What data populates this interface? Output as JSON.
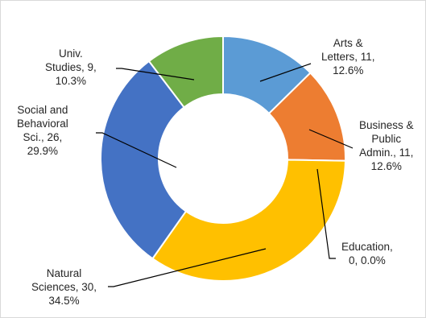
{
  "chart_data": {
    "type": "pie",
    "donut": true,
    "legend": "none",
    "slices": [
      {
        "label": "Arts & Letters",
        "value": 11,
        "percent": "12.6%",
        "color": "#5b9bd5",
        "text_lines": [
          "Arts &",
          "Letters, 11,",
          "12.6%"
        ]
      },
      {
        "label": "Business & Public Admin.",
        "value": 11,
        "percent": "12.6%",
        "color": "#ed7d31",
        "text_lines": [
          "Business &",
          "Public",
          "Admin., 11,",
          "12.6%"
        ]
      },
      {
        "label": "Education",
        "value": 0,
        "percent": "0.0%",
        "color": "#a5a5a5",
        "text_lines": [
          "Education,",
          "0, 0.0%"
        ]
      },
      {
        "label": "Natural Sciences",
        "value": 30,
        "percent": "34.5%",
        "color": "#ffc000",
        "text_lines": [
          "Natural",
          "Sciences, 30,",
          "34.5%"
        ]
      },
      {
        "label": "Social and Behavioral Sci.",
        "value": 26,
        "percent": "29.9%",
        "color": "#4472c4",
        "text_lines": [
          "Social and",
          "Behavioral",
          "Sci., 26,",
          "29.9%"
        ]
      },
      {
        "label": "Univ. Studies",
        "value": 9,
        "percent": "10.3%",
        "color": "#70ad47",
        "text_lines": [
          "Univ.",
          "Studies, 9,",
          "10.3%"
        ]
      }
    ]
  }
}
